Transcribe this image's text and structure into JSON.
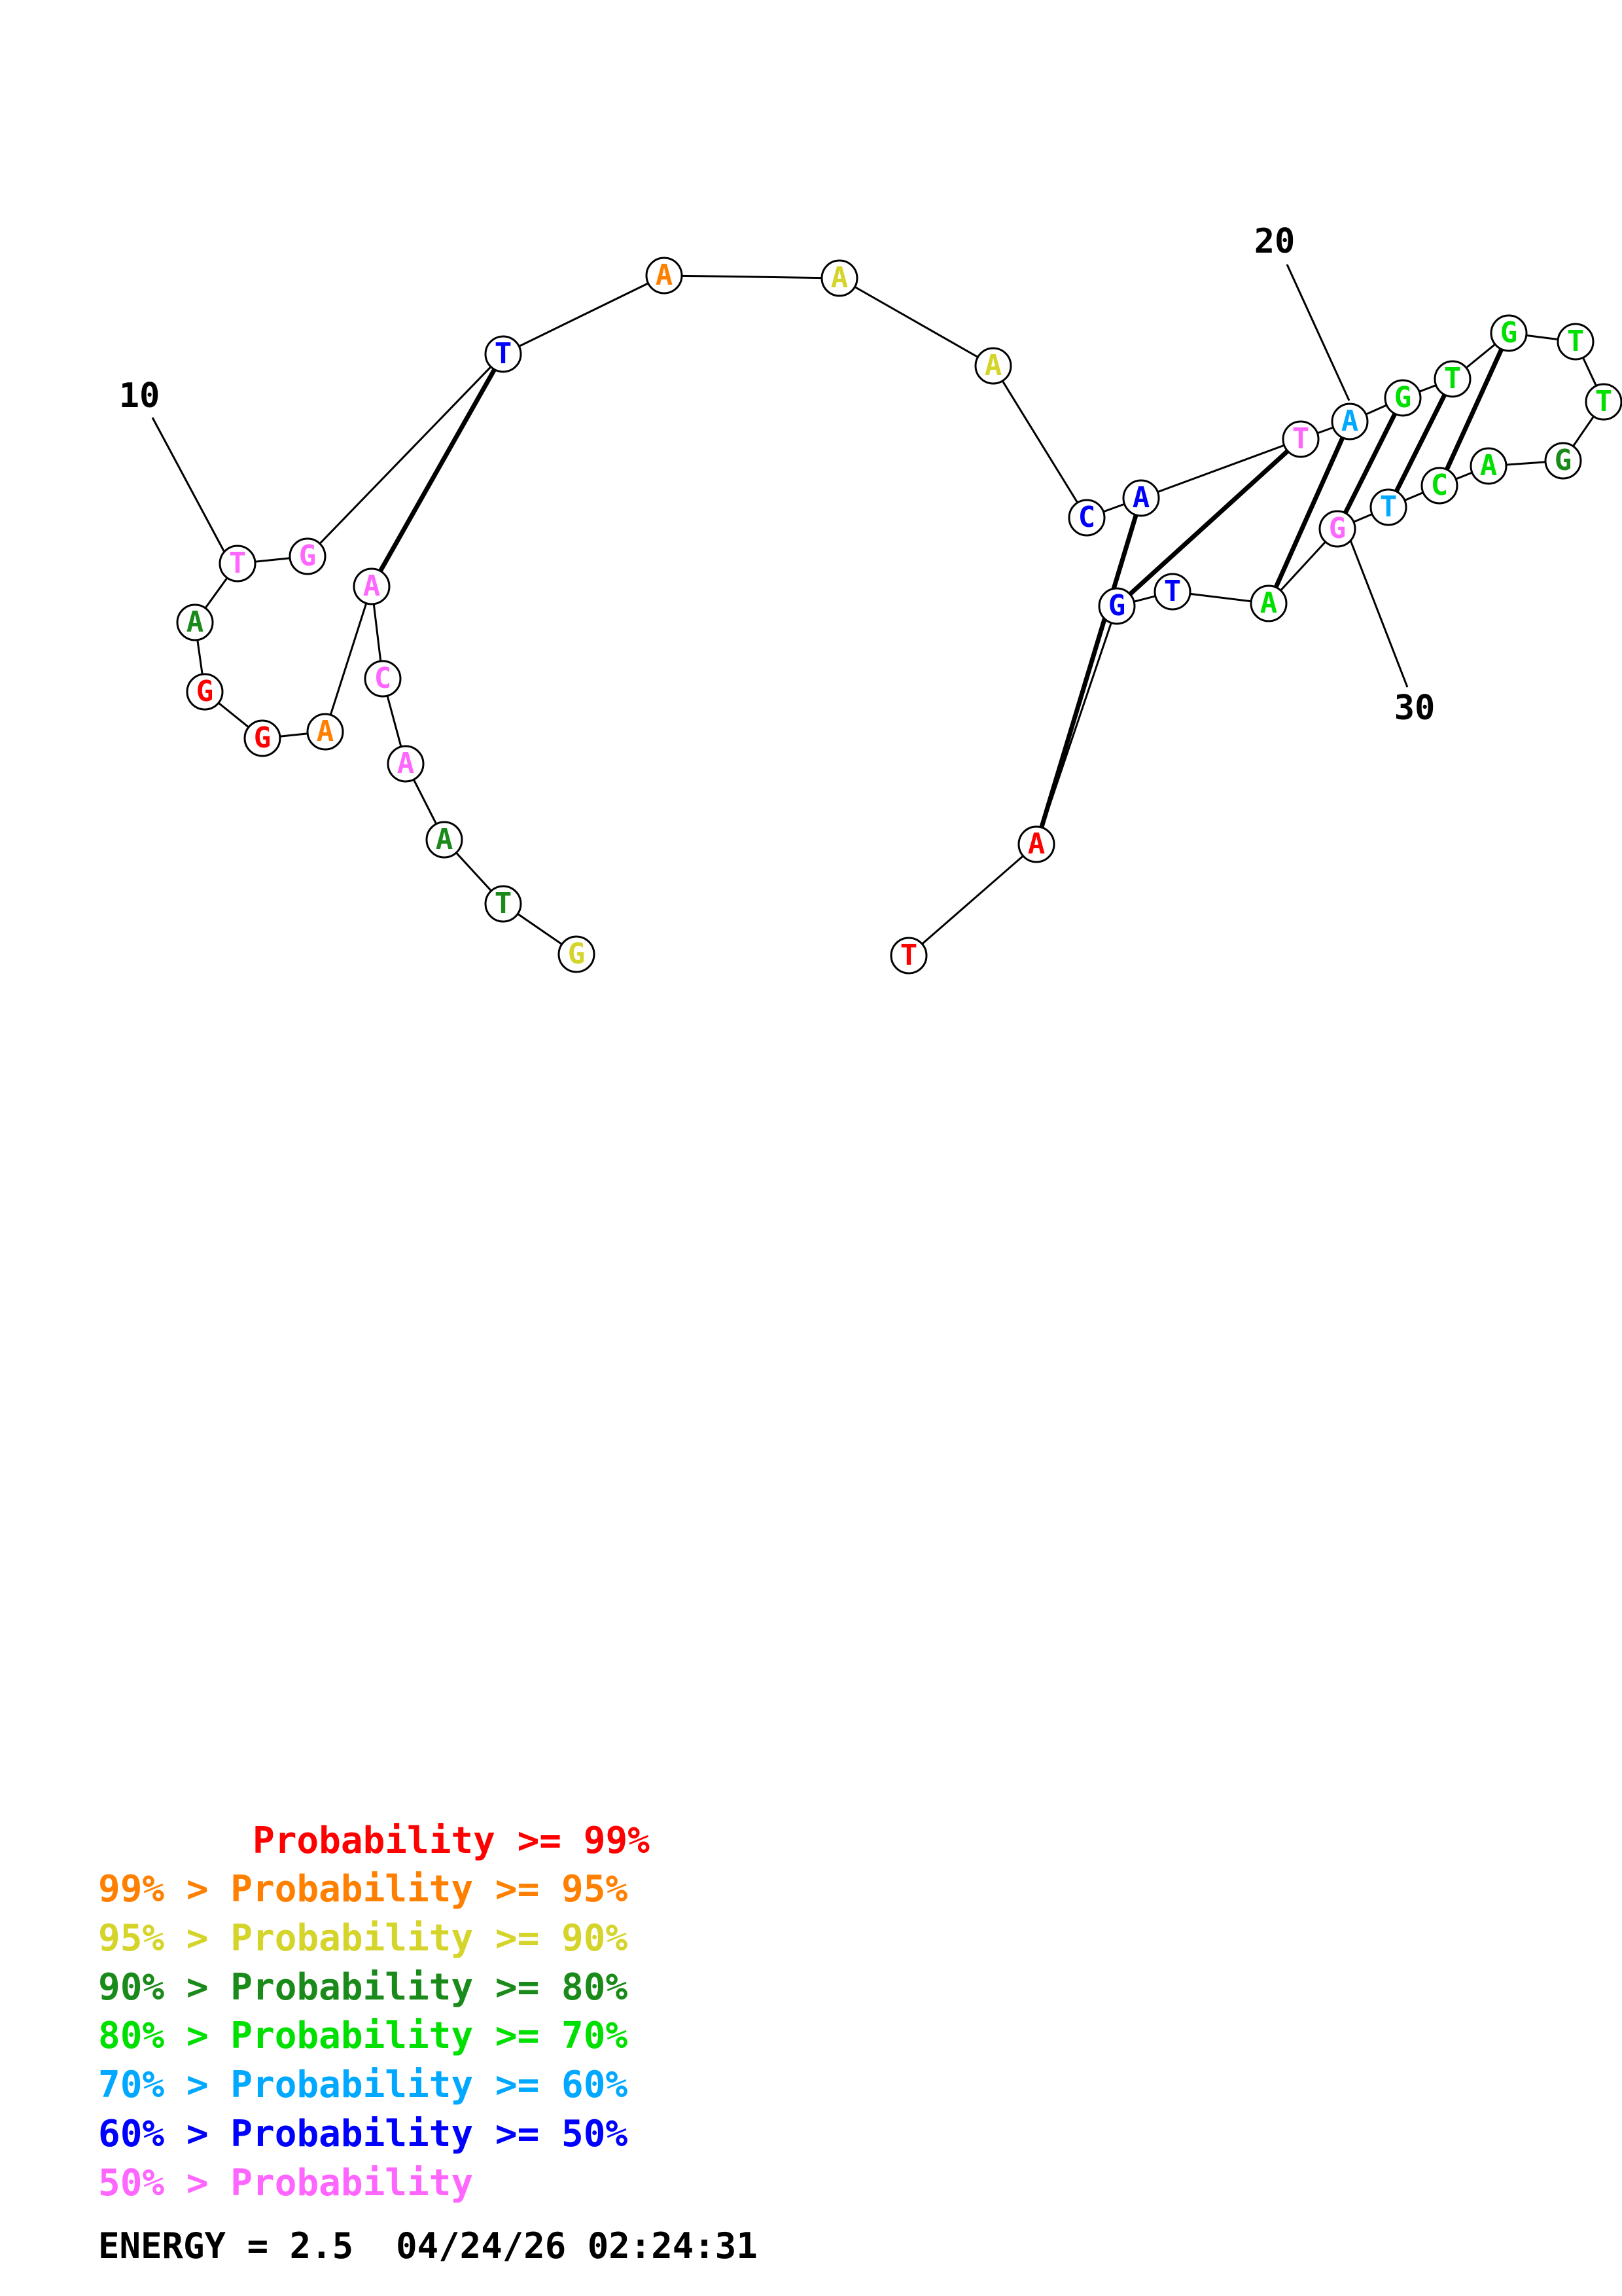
{
  "diagram": {
    "type": "RNA secondary structure",
    "sequence": [
      "G",
      "T",
      "A",
      "A",
      "C",
      "A",
      "A",
      "G",
      "G",
      "A",
      "T",
      "G",
      "T",
      "A",
      "A",
      "A",
      "C",
      "A",
      "T",
      "A",
      "G",
      "T",
      "G",
      "T",
      "T",
      "G",
      "A",
      "C",
      "T",
      "G",
      "A",
      "T",
      "G",
      "A",
      "T"
    ],
    "colors": [
      "#d4d42b",
      "#1a8a1a",
      "#1a8a1a",
      "#ff66ff",
      "#ff66ff",
      "#ff66ff",
      "#ff8000",
      "#ff0000",
      "#ff0000",
      "#1a8a1a",
      "#ff66ff",
      "#ff66ff",
      "#0000ff",
      "#ff8000",
      "#d4d42b",
      "#d4d42b",
      "#0000ff",
      "#0000ff",
      "#ff66ff",
      "#00a8ff",
      "#00e000",
      "#00e000",
      "#00e000",
      "#00e000",
      "#00e000",
      "#1a8a1a",
      "#00e000",
      "#00e000",
      "#00a8ff",
      "#ff66ff",
      "#00e000",
      "#0000ff",
      "#0000ff",
      "#ff0000",
      "#ff0000"
    ],
    "pairs": [
      [
        5,
        12
      ],
      [
        17,
        33
      ],
      [
        18,
        32
      ],
      [
        19,
        30
      ],
      [
        20,
        29
      ],
      [
        21,
        28
      ],
      [
        22,
        27
      ]
    ],
    "number_labels": [
      "10",
      "20",
      "30"
    ]
  },
  "legend": [
    {
      "prefix": "",
      "text": "Probability >= 99%",
      "color": "#ff0000"
    },
    {
      "prefix": "99% > ",
      "text": "Probability >= 95%",
      "color": "#ff8000"
    },
    {
      "prefix": "95% > ",
      "text": "Probability >= 90%",
      "color": "#d4d42b"
    },
    {
      "prefix": "90% > ",
      "text": "Probability >= 80%",
      "color": "#1a8a1a"
    },
    {
      "prefix": "80% > ",
      "text": "Probability >= 70%",
      "color": "#00e000"
    },
    {
      "prefix": "70% > ",
      "text": "Probability >= 60%",
      "color": "#00a8ff"
    },
    {
      "prefix": "60% > ",
      "text": "Probability >= 50%",
      "color": "#0000ff"
    },
    {
      "prefix": "50% > ",
      "text": "Probability",
      "color": "#ff66ff"
    }
  ],
  "energy_line": "ENERGY = 2.5  04/24/26 02:24:31"
}
